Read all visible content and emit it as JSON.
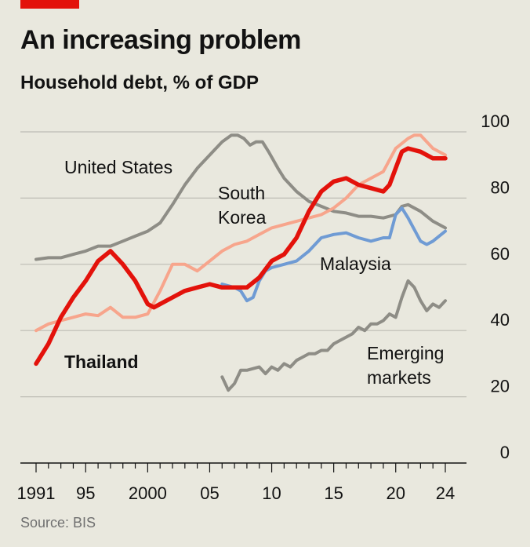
{
  "header": {
    "title": "An increasing problem",
    "subtitle": "Household debt, % of GDP",
    "accent_color": "#e3120b"
  },
  "footer": {
    "source": "Source: BIS"
  },
  "chart_data": {
    "type": "line",
    "title": "An increasing problem",
    "subtitle": "Household debt, % of GDP",
    "xlabel": "",
    "ylabel": "",
    "xlim": [
      1990.5,
      2024.5
    ],
    "ylim": [
      0,
      100
    ],
    "y_ticks": [
      0,
      20,
      40,
      60,
      80,
      100
    ],
    "y_tick_labels": [
      "0",
      "20",
      "40",
      "60",
      "80",
      "100"
    ],
    "x_ticks": [
      1991,
      1995,
      2000,
      2005,
      2010,
      2015,
      2020,
      2024
    ],
    "x_tick_labels": [
      "1991",
      "95",
      "2000",
      "05",
      "10",
      "15",
      "20",
      "24"
    ],
    "y_axis_position": "right",
    "grid": true,
    "legend": "direct labels",
    "series": [
      {
        "name": "United States",
        "color": "#8e8d86",
        "label_lines": [
          "United States"
        ],
        "x": [
          1991,
          1992,
          1993,
          1994,
          1995,
          1996,
          1997,
          1998,
          1999,
          2000,
          2001,
          2002,
          2003,
          2004,
          2005,
          2006,
          2006.75,
          2007.25,
          2007.75,
          2008.25,
          2008.75,
          2009.25,
          2009.75,
          2010.5,
          2011,
          2012,
          2013,
          2014,
          2015,
          2016,
          2017,
          2018,
          2019,
          2020,
          2020.5,
          2021,
          2022,
          2023,
          2024
        ],
        "y": [
          61.5,
          62,
          62,
          63,
          64,
          65.5,
          65.5,
          67,
          68.5,
          70,
          72.5,
          78,
          84,
          89,
          93,
          97,
          99,
          99,
          98,
          96,
          97,
          97,
          94,
          89,
          86,
          82,
          79,
          77.5,
          76,
          75.5,
          74.5,
          74.5,
          74,
          75,
          77.5,
          78,
          76,
          73,
          71
        ]
      },
      {
        "name": "South Korea",
        "color": "#f7a58c",
        "label_lines": [
          "South",
          "Korea"
        ],
        "x": [
          1991,
          1992,
          1993,
          1994,
          1995,
          1996,
          1997,
          1998,
          1999,
          2000,
          2001,
          2002,
          2003,
          2004,
          2005,
          2006,
          2007,
          2008,
          2009,
          2010,
          2011,
          2012,
          2013,
          2014,
          2015,
          2016,
          2017,
          2018,
          2019,
          2020,
          2021,
          2021.5,
          2022,
          2023,
          2024
        ],
        "y": [
          40,
          42,
          43,
          44,
          45,
          44.5,
          47,
          44,
          44,
          45,
          52,
          60,
          60,
          58,
          61,
          64,
          66,
          67,
          69,
          71,
          72,
          73,
          74,
          75,
          77,
          80,
          84,
          86,
          88,
          95,
          98,
          99,
          99,
          95,
          93
        ]
      },
      {
        "name": "Malaysia",
        "color": "#6f9bd4",
        "label_lines": [
          "Malaysia"
        ],
        "x": [
          2006,
          2007,
          2007.5,
          2008,
          2008.5,
          2009,
          2009.5,
          2010,
          2011,
          2012,
          2013,
          2014,
          2015,
          2016,
          2017,
          2018,
          2019,
          2019.5,
          2020,
          2020.5,
          2021,
          2022,
          2022.5,
          2023,
          2024
        ],
        "y": [
          54,
          53,
          52,
          49,
          50,
          55,
          58,
          59,
          60,
          61,
          64,
          68,
          69,
          69.5,
          68,
          67,
          68,
          68,
          75,
          77,
          74,
          67,
          66,
          67,
          70
        ]
      },
      {
        "name": "Emerging markets",
        "color": "#8e8d86",
        "label_lines": [
          "Emerging",
          "markets"
        ],
        "x": [
          2006,
          2006.5,
          2007,
          2007.5,
          2008,
          2008.5,
          2009,
          2009.5,
          2010,
          2010.5,
          2011,
          2011.5,
          2012,
          2012.5,
          2013,
          2013.5,
          2014,
          2014.5,
          2015,
          2015.5,
          2016,
          2016.5,
          2017,
          2017.5,
          2018,
          2018.5,
          2019,
          2019.5,
          2020,
          2020.5,
          2021,
          2021.5,
          2022,
          2022.5,
          2023,
          2023.5,
          2024
        ],
        "y": [
          26,
          22,
          24,
          28,
          28,
          28.5,
          29,
          27,
          29,
          28,
          30,
          29,
          31,
          32,
          33,
          33,
          34,
          34,
          36,
          37,
          38,
          39,
          41,
          40,
          42,
          42,
          43,
          45,
          44,
          50,
          55,
          53,
          49,
          46,
          48,
          47,
          49
        ]
      },
      {
        "name": "Thailand",
        "color": "#e3120b",
        "label_lines": [
          "Thailand"
        ],
        "x": [
          1991,
          1992,
          1993,
          1994,
          1995,
          1996,
          1997,
          1998,
          1999,
          2000,
          2000.5,
          2001,
          2002,
          2003,
          2004,
          2005,
          2006,
          2007,
          2008,
          2009,
          2010,
          2011,
          2012,
          2013,
          2014,
          2015,
          2016,
          2017,
          2018,
          2019,
          2019.5,
          2020,
          2020.5,
          2021,
          2022,
          2023,
          2024
        ],
        "y": [
          30,
          36,
          44,
          50,
          55,
          61,
          64,
          60,
          55,
          48,
          47,
          48,
          50,
          52,
          53,
          54,
          53,
          53,
          53,
          56,
          61,
          63,
          68,
          76,
          82,
          85,
          86,
          84,
          83,
          82,
          84,
          89,
          94,
          95,
          94,
          92,
          92
        ]
      }
    ]
  }
}
